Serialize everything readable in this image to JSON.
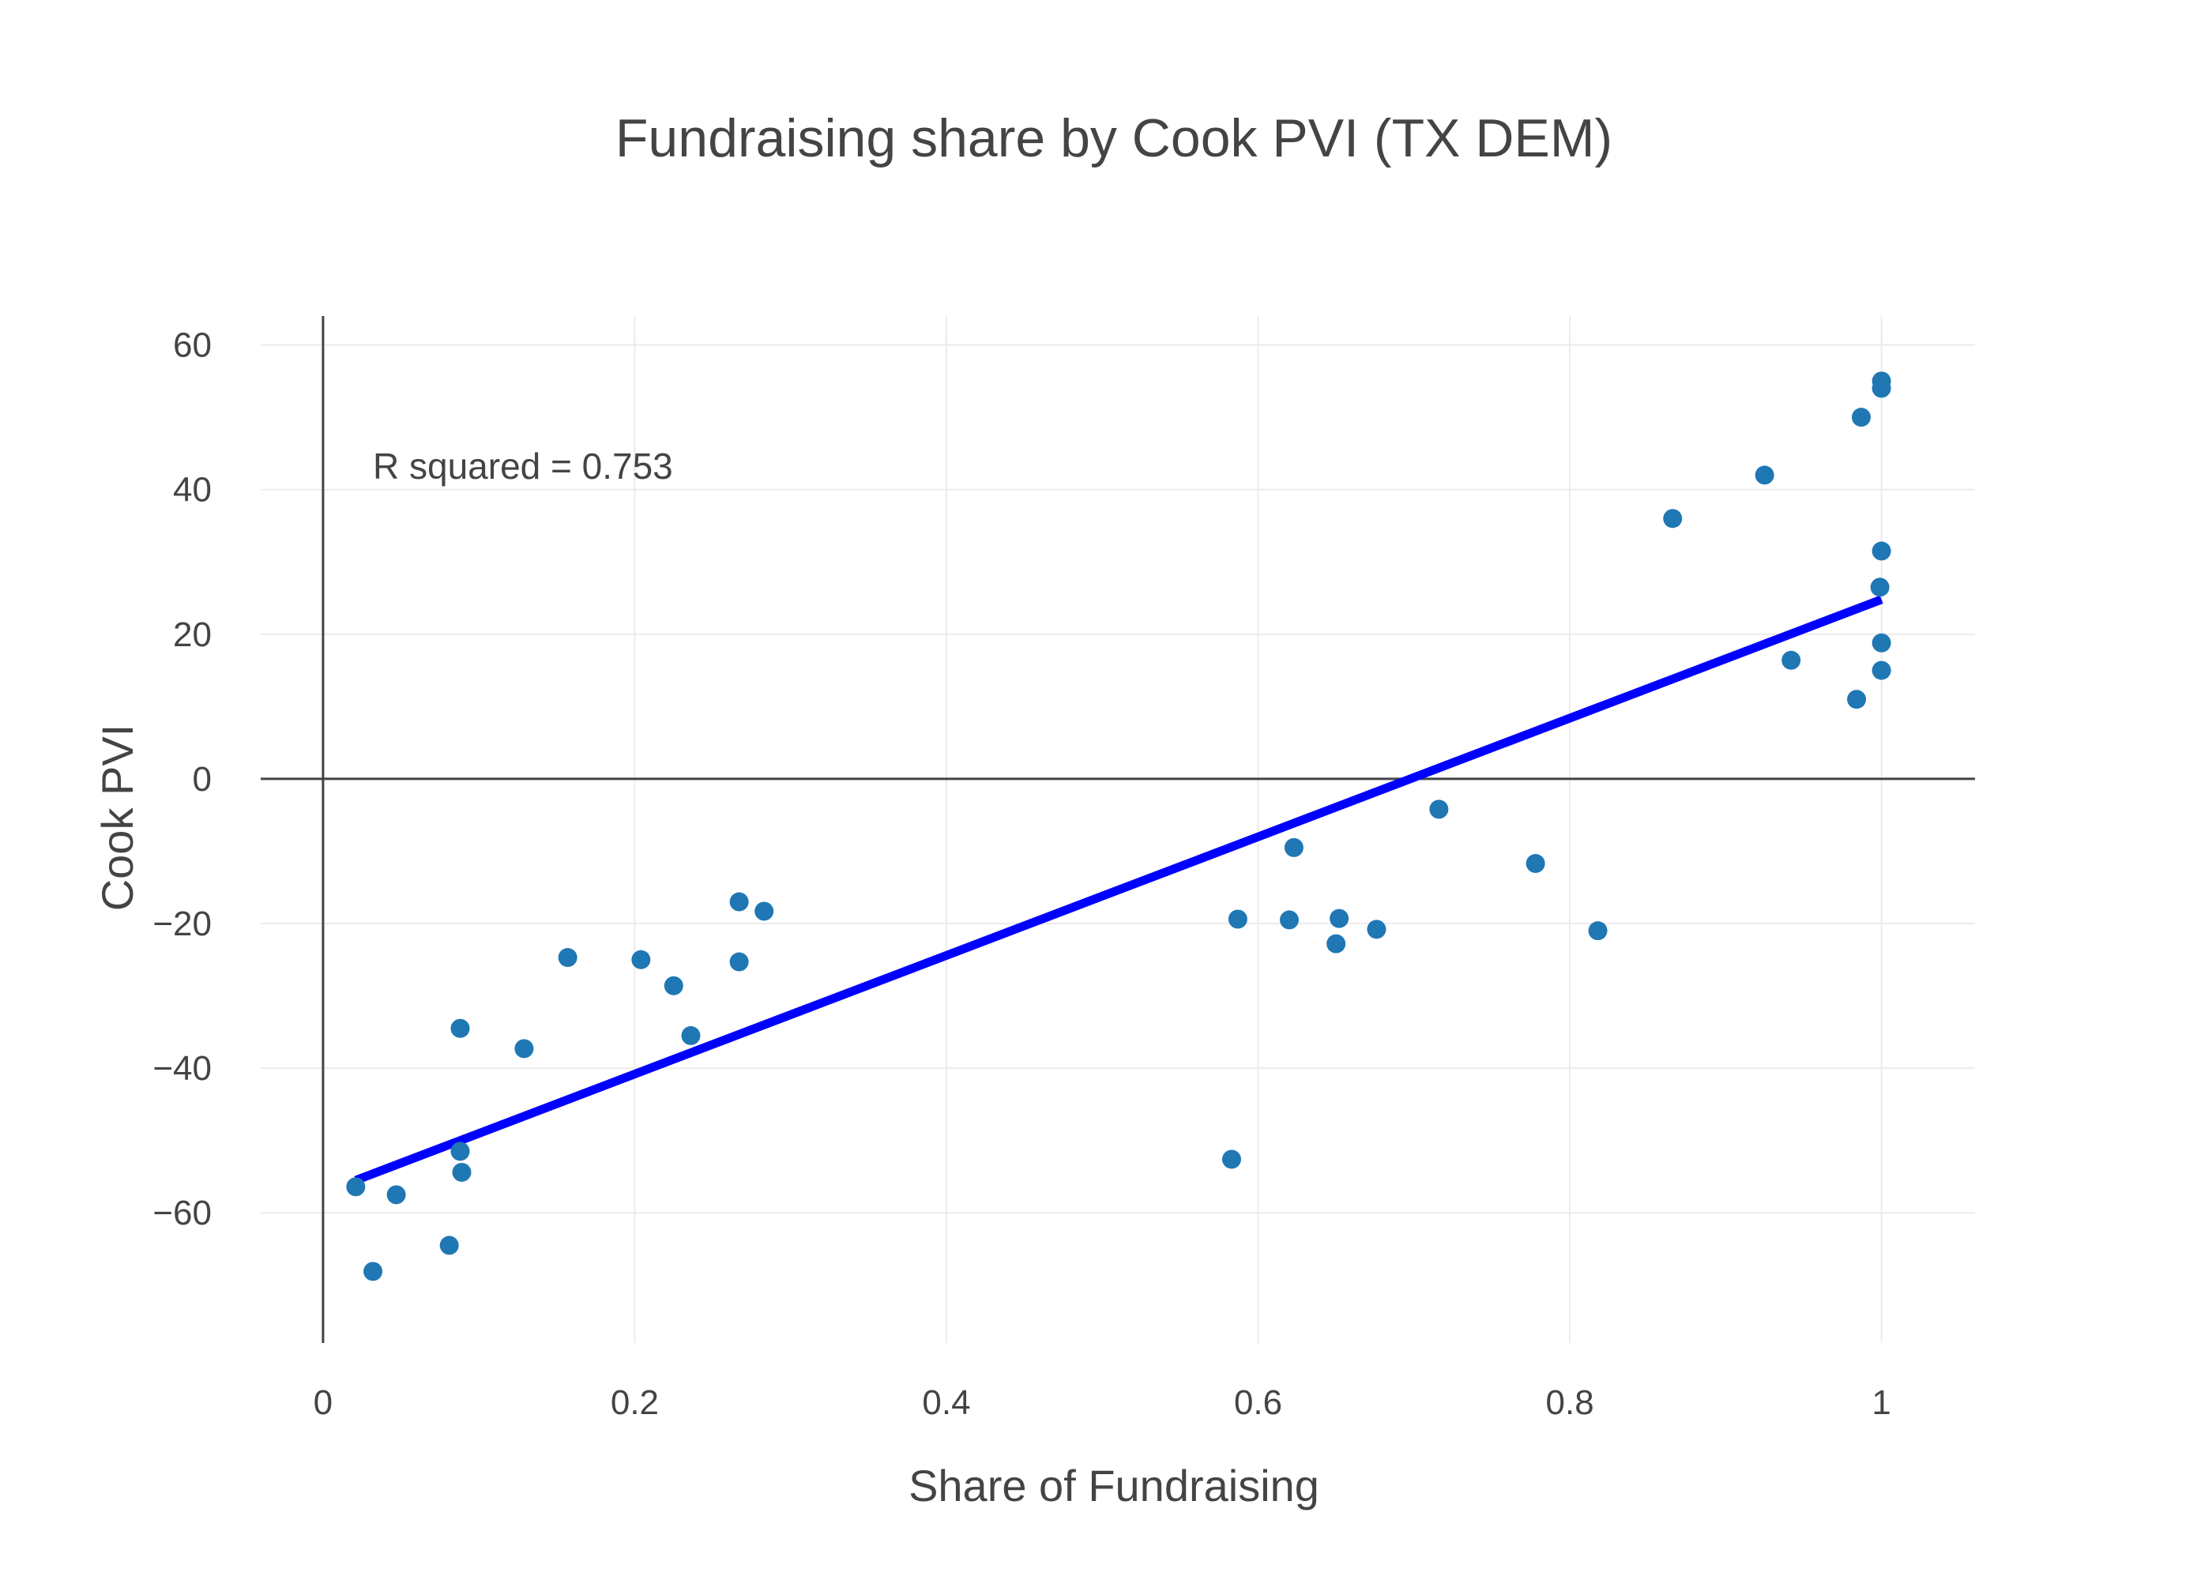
{
  "chart_data": {
    "type": "scatter",
    "title": "Fundraising share by Cook PVI (TX DEM)",
    "xlabel": "Share of Fundraising",
    "ylabel": "Cook PVI",
    "xlim": [
      -0.04,
      1.06
    ],
    "ylim": [
      -78,
      64
    ],
    "xticks": [
      0,
      0.2,
      0.4,
      0.6,
      0.8,
      1
    ],
    "xtick_labels": [
      "0",
      "0.2",
      "0.4",
      "0.6",
      "0.8",
      "1"
    ],
    "yticks": [
      -60,
      -40,
      -20,
      0,
      20,
      40,
      60
    ],
    "ytick_labels": [
      "−60",
      "−40",
      "−20",
      "0",
      "20",
      "40",
      "60"
    ],
    "grid": true,
    "marker_color": "#1f77b4",
    "line_color": "#0000ff",
    "annotation": "R squared = 0.753",
    "points": [
      {
        "x": 1.0,
        "y": 55
      },
      {
        "x": 1.0,
        "y": 54
      },
      {
        "x": 0.987,
        "y": 50
      },
      {
        "x": 0.925,
        "y": 42
      },
      {
        "x": 0.866,
        "y": 36
      },
      {
        "x": 1.0,
        "y": 31.5
      },
      {
        "x": 0.999,
        "y": 26.5
      },
      {
        "x": 1.0,
        "y": 18.8
      },
      {
        "x": 0.942,
        "y": 16.4
      },
      {
        "x": 1.0,
        "y": 15
      },
      {
        "x": 0.984,
        "y": 11
      },
      {
        "x": 0.716,
        "y": -4.2
      },
      {
        "x": 0.778,
        "y": -11.7
      },
      {
        "x": 0.623,
        "y": -9.5
      },
      {
        "x": 0.587,
        "y": -19.4
      },
      {
        "x": 0.62,
        "y": -19.5
      },
      {
        "x": 0.652,
        "y": -19.3
      },
      {
        "x": 0.676,
        "y": -20.8
      },
      {
        "x": 0.65,
        "y": -22.8
      },
      {
        "x": 0.818,
        "y": -21
      },
      {
        "x": 0.583,
        "y": -52.6
      },
      {
        "x": 0.267,
        "y": -17
      },
      {
        "x": 0.283,
        "y": -18.3
      },
      {
        "x": 0.157,
        "y": -24.7
      },
      {
        "x": 0.204,
        "y": -25
      },
      {
        "x": 0.267,
        "y": -25.3
      },
      {
        "x": 0.225,
        "y": -28.6
      },
      {
        "x": 0.236,
        "y": -35.5
      },
      {
        "x": 0.088,
        "y": -34.5
      },
      {
        "x": 0.129,
        "y": -37.3
      },
      {
        "x": 0.088,
        "y": -51.5
      },
      {
        "x": 0.089,
        "y": -54.4
      },
      {
        "x": 0.021,
        "y": -56.4
      },
      {
        "x": 0.047,
        "y": -57.5
      },
      {
        "x": 0.081,
        "y": -64.5
      },
      {
        "x": 0.032,
        "y": -68.1
      }
    ],
    "fit_line": {
      "x": [
        0.021,
        1.0
      ],
      "y": [
        -55.5,
        24.8
      ]
    }
  }
}
